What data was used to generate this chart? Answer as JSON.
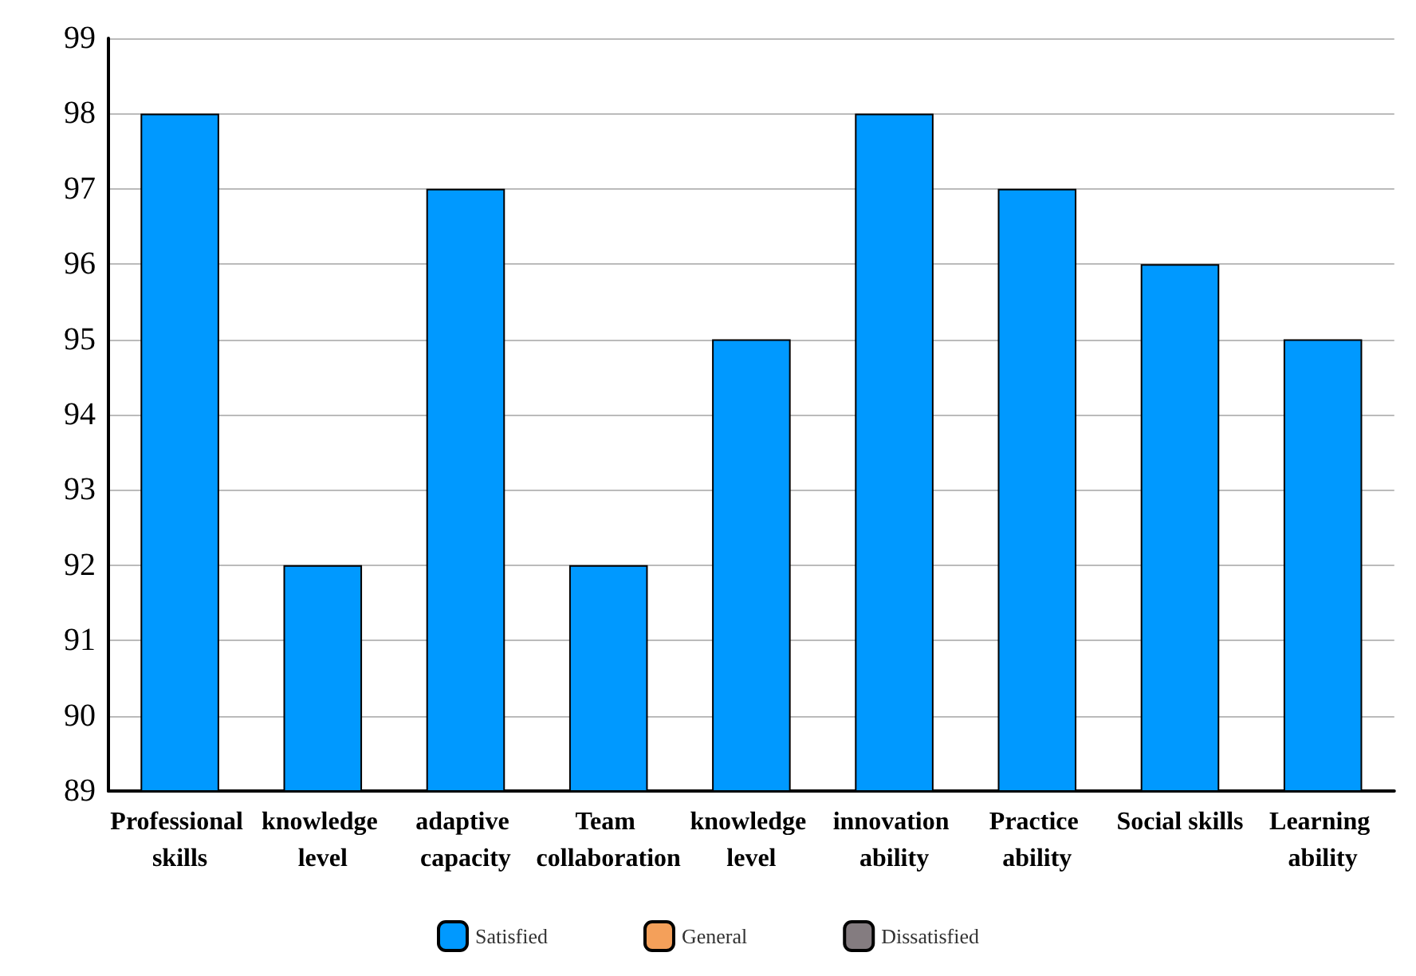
{
  "chart_data": {
    "type": "bar",
    "categories": [
      "Professional skills",
      "knowledge level",
      "adaptive capacity",
      "Team collaboration",
      "knowledge level",
      "innovation ability",
      "Practice ability",
      "Social skills",
      "Learning ability"
    ],
    "series": [
      {
        "name": "Satisfied",
        "color": "#0099ff",
        "values": [
          98,
          92,
          97,
          92,
          95,
          98,
          97,
          96,
          95
        ]
      },
      {
        "name": "General",
        "color": "#f4a05a",
        "values": [
          null,
          null,
          null,
          null,
          null,
          null,
          null,
          null,
          null
        ]
      },
      {
        "name": "Dissatisfied",
        "color": "#847c80",
        "values": [
          null,
          null,
          null,
          null,
          null,
          null,
          null,
          null,
          null
        ]
      }
    ],
    "ylim": [
      89,
      99
    ],
    "yticks": [
      89,
      90,
      91,
      92,
      93,
      94,
      95,
      96,
      97,
      98,
      99
    ],
    "grid": "y",
    "legend": "bottom"
  }
}
